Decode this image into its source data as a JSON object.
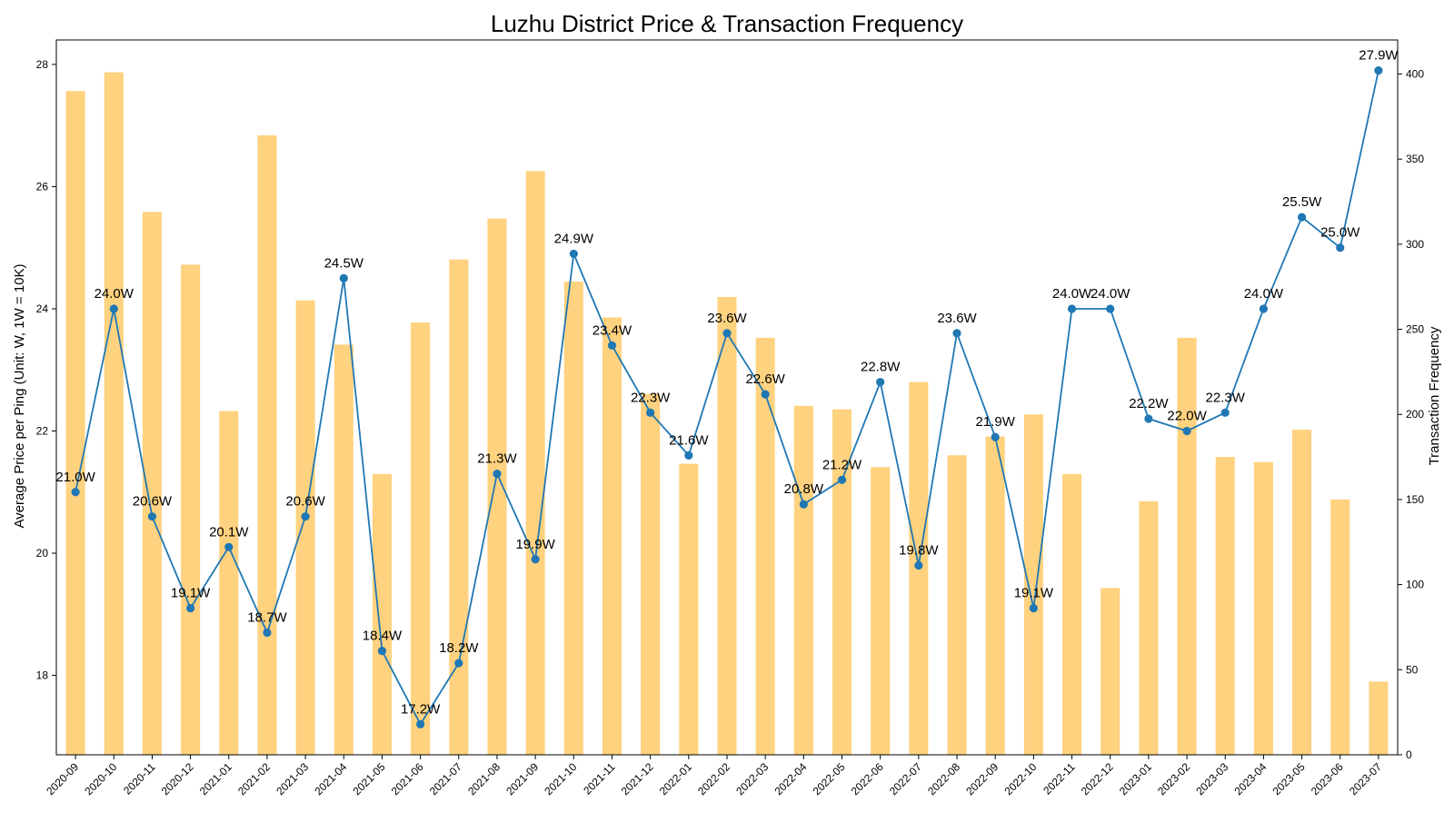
{
  "chart_data": {
    "type": "bar+line",
    "title": "Luzhu District Price & Transaction Frequency",
    "ylabel_left": "Average Price per Ping (Unit: W, 1W = 10K)",
    "ylabel_right": "Transaction Frequency",
    "xlabel": "",
    "grid": false,
    "categories": [
      "2020-09",
      "2020-10",
      "2020-11",
      "2020-12",
      "2021-01",
      "2021-02",
      "2021-03",
      "2021-04",
      "2021-05",
      "2021-06",
      "2021-07",
      "2021-08",
      "2021-09",
      "2021-10",
      "2021-11",
      "2021-12",
      "2022-01",
      "2022-02",
      "2022-03",
      "2022-04",
      "2022-05",
      "2022-06",
      "2022-07",
      "2022-08",
      "2022-09",
      "2022-10",
      "2022-11",
      "2022-12",
      "2023-01",
      "2023-02",
      "2023-03",
      "2023-04",
      "2023-05",
      "2023-06",
      "2023-07"
    ],
    "price": [
      21.0,
      24.0,
      20.6,
      19.1,
      20.1,
      18.7,
      20.6,
      24.5,
      18.4,
      17.2,
      18.2,
      21.3,
      19.9,
      24.9,
      23.4,
      22.3,
      21.6,
      23.6,
      22.6,
      20.8,
      21.2,
      22.8,
      19.8,
      23.6,
      21.9,
      19.1,
      24.0,
      24.0,
      22.2,
      22.0,
      22.3,
      24.0,
      25.5,
      25.0,
      27.9
    ],
    "price_labels": [
      "21.0W",
      "24.0W",
      "20.6W",
      "19.1W",
      "20.1W",
      "18.7W",
      "20.6W",
      "24.5W",
      "18.4W",
      "17.2W",
      "18.2W",
      "21.3W",
      "19.9W",
      "24.9W",
      "23.4W",
      "22.3W",
      "21.6W",
      "23.6W",
      "22.6W",
      "20.8W",
      "21.2W",
      "22.8W",
      "19.8W",
      "23.6W",
      "21.9W",
      "19.1W",
      "24.0W",
      "24.0W",
      "22.2W",
      "22.0W",
      "22.3W",
      "24.0W",
      "25.5W",
      "25.0W",
      "27.9W"
    ],
    "transactions": [
      390,
      401,
      319,
      288,
      202,
      364,
      267,
      241,
      165,
      254,
      291,
      315,
      343,
      278,
      257,
      212,
      171,
      269,
      245,
      205,
      203,
      169,
      219,
      176,
      187,
      200,
      165,
      98,
      149,
      245,
      175,
      172,
      191,
      150,
      43
    ],
    "y_left_ticks": [
      "18",
      "20",
      "22",
      "24",
      "26",
      "28"
    ],
    "y_right_ticks": [
      "0",
      "50",
      "100",
      "150",
      "200",
      "250",
      "300",
      "350",
      "400"
    ],
    "y_left_range": [
      16.7,
      28.4
    ],
    "y_right_range": [
      0,
      420
    ],
    "colors": {
      "bars": "#ffc04d",
      "bar_opacity": 0.72,
      "line": "#1f77b4"
    }
  }
}
